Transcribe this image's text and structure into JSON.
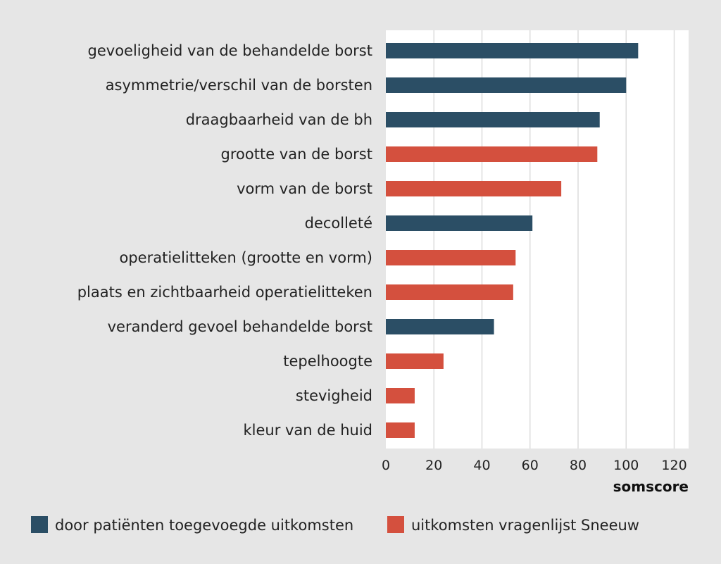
{
  "chart_data": {
    "type": "bar",
    "orientation": "horizontal",
    "categories": [
      "gevoeligheid van de behandelde borst",
      "asymmetrie/verschil van de borsten",
      "draagbaarheid van de bh",
      "grootte van de borst",
      "vorm van de borst",
      "decolleté",
      "operatielitteken (grootte en vorm)",
      "plaats en zichtbaarheid operatielitteken",
      "veranderd gevoel behandelde borst",
      "tepelhoogte",
      "stevigheid",
      "kleur van de huid"
    ],
    "values": [
      105,
      100,
      89,
      88,
      73,
      61,
      54,
      53,
      45,
      24,
      12,
      12
    ],
    "bar_series": [
      0,
      0,
      0,
      1,
      1,
      0,
      1,
      1,
      0,
      1,
      1,
      1
    ],
    "series": [
      {
        "name": "door patiënten toegevoegde uitkomsten",
        "color": "#2b4e65"
      },
      {
        "name": "uitkomsten vragenlijst Sneeuw",
        "color": "#d4503e"
      }
    ],
    "xlabel": "somscore",
    "xlim": [
      0,
      126
    ],
    "xticks": [
      0,
      20,
      40,
      60,
      80,
      100,
      120
    ],
    "grid": true,
    "legend_position": "bottom"
  },
  "colors": {
    "page_background": "#e6e6e6",
    "plot_background": "#ffffff",
    "gridline": "#dcdcdc"
  }
}
